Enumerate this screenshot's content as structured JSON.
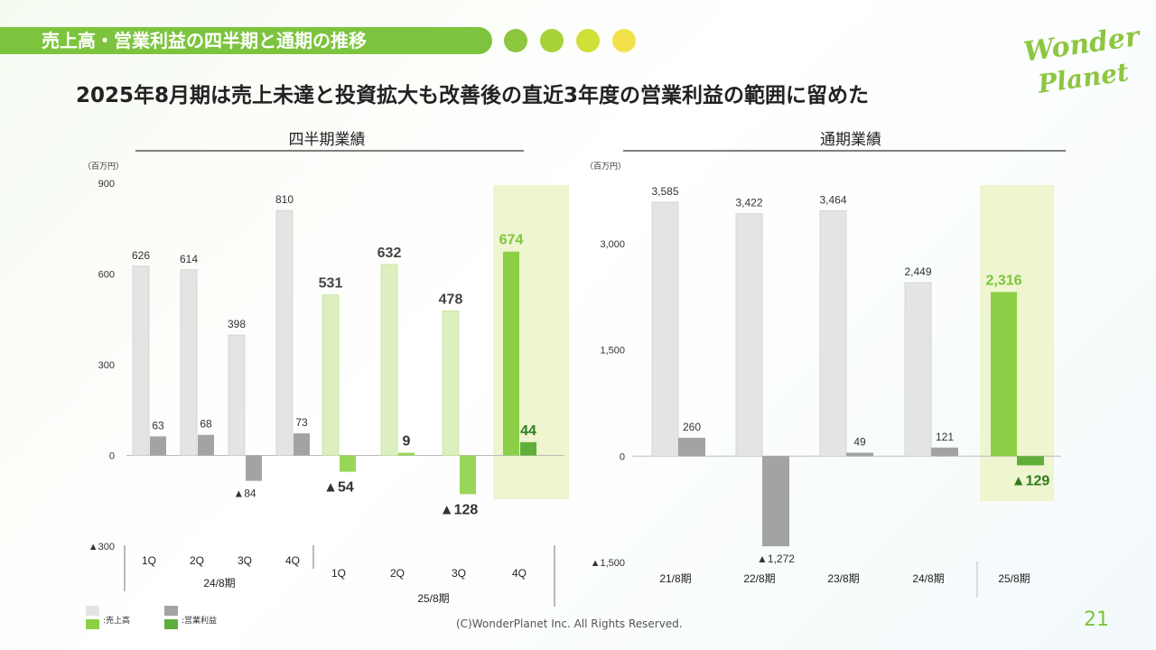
{
  "header": {
    "section_title": "売上高・営業利益の四半期と通期の推移",
    "headline": "2025年8月期は売上未達と投資拡大も改善後の直近3年度の営業利益の範囲に留めた",
    "dot_colors": [
      "#8dc63f",
      "#a8d13a",
      "#cfe036",
      "#f3e24a"
    ]
  },
  "logo": {
    "line1": "Wonder",
    "line2": "Planet"
  },
  "chart_data": [
    {
      "type": "bar",
      "title": "四半期業績",
      "unit_label": "（百万円）",
      "ylim": [
        -300,
        900
      ],
      "yticks": [
        900,
        600,
        300,
        0,
        -300
      ],
      "ytick_labels": [
        "900",
        "600",
        "300",
        "0",
        "▲300"
      ],
      "categories": [
        "1Q",
        "2Q",
        "3Q",
        "4Q",
        "1Q",
        "2Q",
        "3Q",
        "4Q"
      ],
      "groups": [
        "24/8期",
        "25/8期"
      ],
      "highlight_index": 7,
      "series": [
        {
          "name": "売上高",
          "values": [
            626,
            614,
            398,
            810,
            531,
            632,
            478,
            674
          ],
          "labels": [
            "626",
            "614",
            "398",
            "810",
            "531",
            "632",
            "478",
            "674"
          ]
        },
        {
          "name": "営業利益",
          "values": [
            63,
            68,
            -84,
            73,
            -54,
            9,
            -128,
            44
          ],
          "labels": [
            "63",
            "68",
            "▲84",
            "73",
            "▲54",
            "9",
            "▲128",
            "44"
          ]
        }
      ]
    },
    {
      "type": "bar",
      "title": "通期業績",
      "unit_label": "（百万円）",
      "ylim": [
        -1500,
        3750
      ],
      "yticks": [
        3000,
        1500,
        0,
        -1500
      ],
      "ytick_labels": [
        "3,000",
        "1,500",
        "0",
        "▲1,500"
      ],
      "categories": [
        "21/8期",
        "22/8期",
        "23/8期",
        "24/8期",
        "25/8期"
      ],
      "highlight_index": 4,
      "series": [
        {
          "name": "売上高",
          "values": [
            3585,
            3422,
            3464,
            2449,
            2316
          ],
          "labels": [
            "3,585",
            "3,422",
            "3,464",
            "2,449",
            "2,316"
          ]
        },
        {
          "name": "営業利益",
          "values": [
            260,
            -1272,
            49,
            121,
            -129
          ],
          "labels": [
            "260",
            "▲1,272",
            "49",
            "121",
            "▲129"
          ]
        }
      ]
    }
  ],
  "legend": {
    "revenue": ":売上高",
    "operating_profit": ":営業利益"
  },
  "colors": {
    "prev_revenue": "#e4e4e4",
    "prev_profit": "#a3a3a3",
    "cur_revenue": "#dcefbf",
    "cur_profit": "#98d65a",
    "hl_revenue": "#8ccf46",
    "hl_profit": "#5fae3a",
    "highlight_bg": "#eef5cf",
    "accent_label": "#7cc43d"
  },
  "footer": {
    "copyright": "(C)WonderPlanet Inc.  All Rights Reserved.",
    "page": "21"
  }
}
